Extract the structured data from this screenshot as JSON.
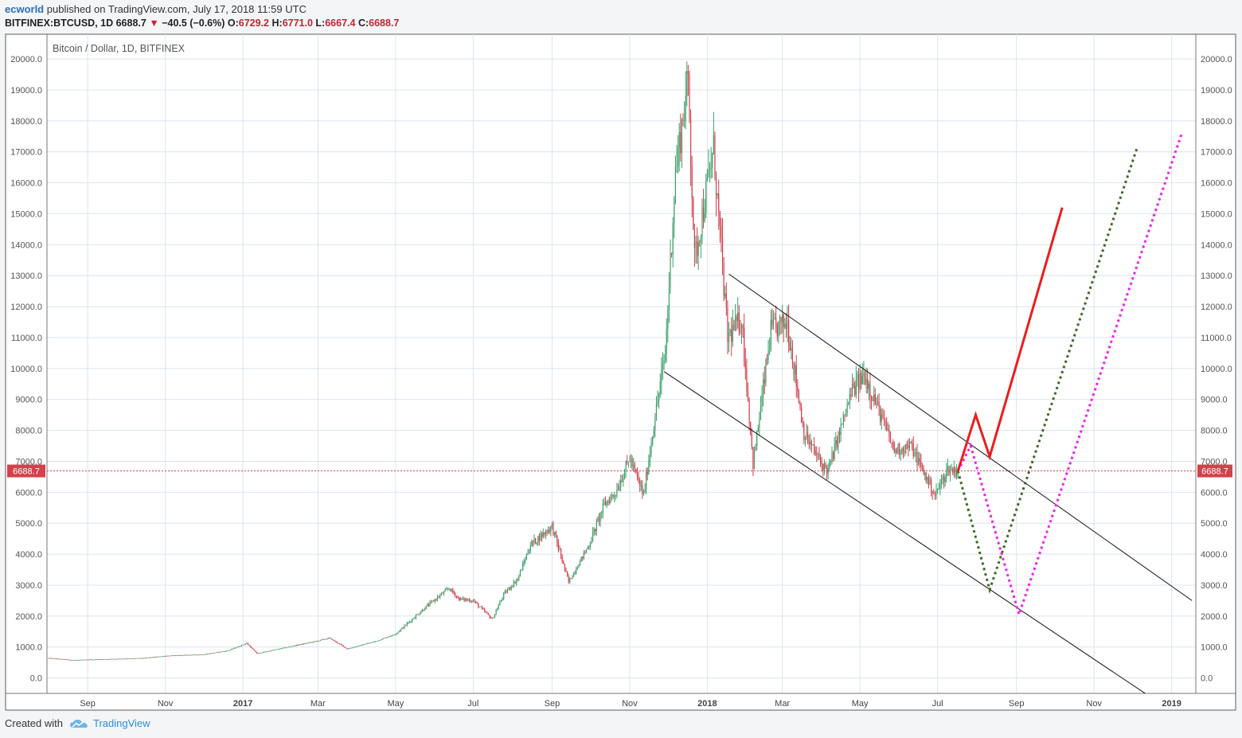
{
  "header": {
    "author": "ecworld",
    "published": "published on TradingView.com, July 17, 2018 11:59 UTC",
    "symbol": "BITFINEX:BTCUSD, 1D",
    "last": "6688.7",
    "arrow": "▼",
    "change": "−40.5 (−0.6%)",
    "o_label": "O:",
    "o": "6729.2",
    "h_label": "H:",
    "h": "6771.0",
    "l_label": "L:",
    "l": "6667.4",
    "c_label": "C:",
    "c": "6688.7"
  },
  "footer": {
    "created": "Created with",
    "brand": "TradingView",
    "logo_icon": "tradingview-cloud-icon"
  },
  "colors": {
    "up": "#3ea06a",
    "down": "#d3414d",
    "grid": "#dbe4ef",
    "price_line": "#d3414d",
    "projection_solid": "#ee1c1c",
    "projection_green": "#3b6b22",
    "projection_magenta": "#ee22ee",
    "channel": "#111111"
  },
  "chart_data": {
    "type": "candlestick",
    "title": "Bitcoin / Dollar, 1D, BITFINEX",
    "ylim": [
      -500,
      20800
    ],
    "y_ticks": [
      "20000.0",
      "19000.0",
      "18000.0",
      "17000.0",
      "16000.0",
      "15000.0",
      "14000.0",
      "13000.0",
      "12000.0",
      "11000.0",
      "10000.0",
      "9000.0",
      "8000.0",
      "7000.0",
      "6000.0",
      "5000.0",
      "4000.0",
      "3000.0",
      "2000.0",
      "1000.0",
      "0.0"
    ],
    "x_ticks": [
      {
        "label": "Sep",
        "date": "2016-09-01",
        "bold": false
      },
      {
        "label": "Nov",
        "date": "2016-11-01",
        "bold": false
      },
      {
        "label": "2017",
        "date": "2017-01-01",
        "bold": true
      },
      {
        "label": "Mar",
        "date": "2017-03-01",
        "bold": false
      },
      {
        "label": "May",
        "date": "2017-05-01",
        "bold": false
      },
      {
        "label": "Jul",
        "date": "2017-07-01",
        "bold": false
      },
      {
        "label": "Sep",
        "date": "2017-09-01",
        "bold": false
      },
      {
        "label": "Nov",
        "date": "2017-11-01",
        "bold": false
      },
      {
        "label": "2018",
        "date": "2018-01-01",
        "bold": true
      },
      {
        "label": "Mar",
        "date": "2018-03-01",
        "bold": false
      },
      {
        "label": "May",
        "date": "2018-05-01",
        "bold": false
      },
      {
        "label": "Jul",
        "date": "2018-07-01",
        "bold": false
      },
      {
        "label": "Sep",
        "date": "2018-09-01",
        "bold": false
      },
      {
        "label": "Nov",
        "date": "2018-11-01",
        "bold": false
      },
      {
        "label": "2019",
        "date": "2019-01-01",
        "bold": true
      }
    ],
    "x_range": [
      "2016-07-31",
      "2019-01-20"
    ],
    "last_price": 6688.7,
    "last_price_label": "6688.7",
    "price_anchors": [
      [
        "2016-08-01",
        640
      ],
      [
        "2016-08-20",
        575
      ],
      [
        "2016-09-15",
        605
      ],
      [
        "2016-10-15",
        640
      ],
      [
        "2016-11-01",
        710
      ],
      [
        "2016-12-01",
        760
      ],
      [
        "2016-12-20",
        880
      ],
      [
        "2017-01-04",
        1120
      ],
      [
        "2017-01-12",
        790
      ],
      [
        "2017-02-01",
        960
      ],
      [
        "2017-03-01",
        1200
      ],
      [
        "2017-03-10",
        1290
      ],
      [
        "2017-03-24",
        940
      ],
      [
        "2017-04-15",
        1180
      ],
      [
        "2017-05-01",
        1420
      ],
      [
        "2017-05-25",
        2300
      ],
      [
        "2017-06-12",
        2900
      ],
      [
        "2017-06-20",
        2550
      ],
      [
        "2017-07-01",
        2500
      ],
      [
        "2017-07-16",
        1900
      ],
      [
        "2017-07-25",
        2700
      ],
      [
        "2017-08-05",
        3200
      ],
      [
        "2017-08-15",
        4300
      ],
      [
        "2017-09-01",
        4900
      ],
      [
        "2017-09-14",
        3100
      ],
      [
        "2017-09-30",
        4300
      ],
      [
        "2017-10-12",
        5600
      ],
      [
        "2017-10-21",
        6000
      ],
      [
        "2017-11-01",
        7100
      ],
      [
        "2017-11-12",
        5900
      ],
      [
        "2017-11-20",
        8200
      ],
      [
        "2017-11-29",
        10500
      ],
      [
        "2017-12-07",
        16400
      ],
      [
        "2017-12-17",
        19300
      ],
      [
        "2017-12-22",
        13500
      ],
      [
        "2018-01-06",
        17100
      ],
      [
        "2018-01-17",
        11000
      ],
      [
        "2018-01-28",
        11600
      ],
      [
        "2018-02-06",
        6900
      ],
      [
        "2018-02-20",
        11200
      ],
      [
        "2018-03-05",
        11500
      ],
      [
        "2018-03-18",
        7900
      ],
      [
        "2018-04-01",
        6900
      ],
      [
        "2018-04-06",
        6700
      ],
      [
        "2018-04-25",
        9300
      ],
      [
        "2018-05-05",
        9800
      ],
      [
        "2018-05-28",
        7350
      ],
      [
        "2018-06-10",
        7500
      ],
      [
        "2018-06-29",
        5900
      ],
      [
        "2018-07-09",
        6750
      ],
      [
        "2018-07-17",
        6688.7
      ]
    ],
    "channel_lines": [
      {
        "start": [
          "2018-01-18",
          13050
        ],
        "end": [
          "2019-01-17",
          2500
        ]
      },
      {
        "start": [
          "2017-11-28",
          9900
        ],
        "end": [
          "2018-12-13",
          -550
        ]
      }
    ],
    "projection_red": [
      [
        "2018-07-17",
        6688.7
      ],
      [
        "2018-07-31",
        8500
      ],
      [
        "2018-08-11",
        7150
      ],
      [
        "2018-10-07",
        15200
      ]
    ],
    "projection_green": [
      [
        "2018-07-17",
        6688.7
      ],
      [
        "2018-08-11",
        2850
      ],
      [
        "2018-12-05",
        17150
      ]
    ],
    "projection_magenta": [
      [
        "2018-07-17",
        6688.7
      ],
      [
        "2018-07-27",
        7500
      ],
      [
        "2018-09-03",
        2050
      ],
      [
        "2019-01-09",
        17600
      ]
    ]
  }
}
